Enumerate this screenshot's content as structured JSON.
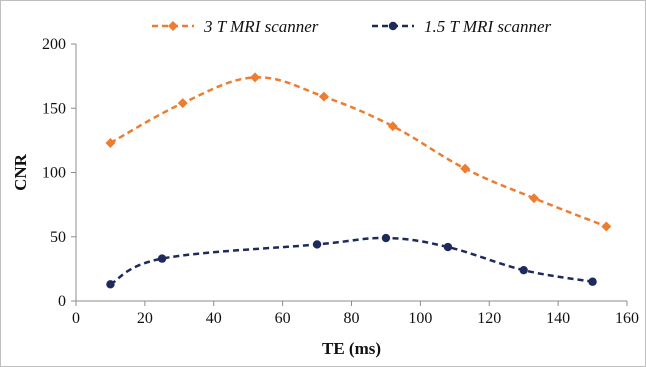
{
  "chart_data": {
    "type": "line",
    "xlabel": "TE (ms)",
    "ylabel": "CNR",
    "xlim": [
      0,
      160
    ],
    "ylim": [
      0,
      200
    ],
    "xticks": [
      "0",
      "20",
      "40",
      "60",
      "80",
      "100",
      "120",
      "140",
      "160"
    ],
    "yticks": [
      "0",
      "50",
      "100",
      "150",
      "200"
    ],
    "grid": false,
    "legend_position": "top",
    "series": [
      {
        "name": "3 T MRI scanner",
        "color": "#ed7d31",
        "marker": "diamond",
        "line_style": "dashed",
        "x": [
          10,
          31,
          52,
          72,
          92,
          113,
          133,
          154
        ],
        "y": [
          123,
          154,
          174,
          159,
          136,
          103,
          80,
          58
        ]
      },
      {
        "name": "1.5 T MRI scanner",
        "color": "#1f2a5c",
        "marker": "circle",
        "line_style": "dashed",
        "x": [
          10,
          25,
          70,
          90,
          108,
          130,
          150
        ],
        "y": [
          13,
          33,
          44,
          49,
          42,
          24,
          15
        ]
      }
    ]
  }
}
